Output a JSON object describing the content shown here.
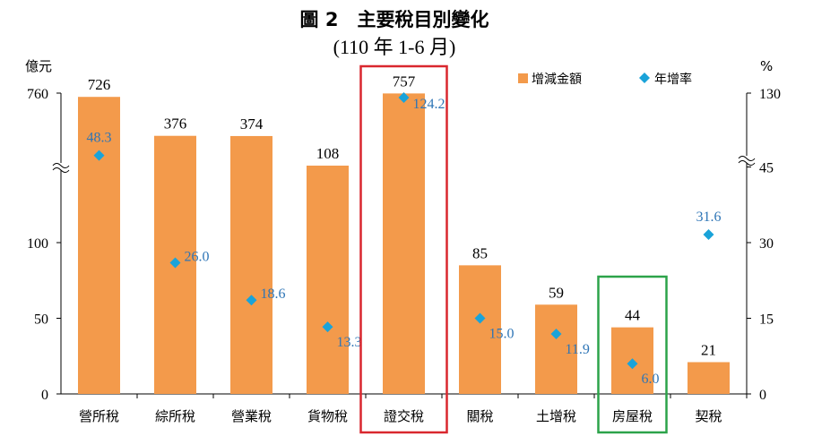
{
  "chart_data": {
    "type": "bar",
    "title": "圖 2　主要稅目別變化",
    "subtitle": "(110 年 1-6 月)",
    "left_unit": "億元",
    "right_unit": "%",
    "categories": [
      "營所稅",
      "綜所稅",
      "營業稅",
      "貨物稅",
      "證交稅",
      "關稅",
      "土增稅",
      "房屋稅",
      "契稅"
    ],
    "series": [
      {
        "name": "增減金額",
        "kind": "bar",
        "axis": "left",
        "values": [
          726,
          376,
          374,
          108,
          757,
          85,
          59,
          44,
          21
        ],
        "color": "#f39a4b"
      },
      {
        "name": "年增率",
        "kind": "scatter",
        "axis": "right",
        "values": [
          48.3,
          26.0,
          18.6,
          13.3,
          124.2,
          15.0,
          11.9,
          6.0,
          31.6
        ],
        "value_labels": [
          "48.3",
          "26.0",
          "18.6",
          "13.3",
          "124.2",
          "15.0",
          "11.9",
          "6.0",
          "31.6"
        ],
        "color": "#1aa3d9"
      }
    ],
    "left_axis": {
      "ticks": [
        "0",
        "50",
        "100",
        "760"
      ],
      "broken": true,
      "break_between": [
        100,
        760
      ]
    },
    "right_axis": {
      "ticks": [
        "0",
        "15",
        "30",
        "45",
        "130"
      ],
      "broken": true,
      "break_between": [
        45,
        130
      ]
    },
    "legend_position": "top-right",
    "highlights": [
      {
        "category": "證交稅",
        "color": "#d9272e"
      },
      {
        "category": "房屋稅",
        "color": "#2ca34a"
      }
    ],
    "grid": false
  }
}
